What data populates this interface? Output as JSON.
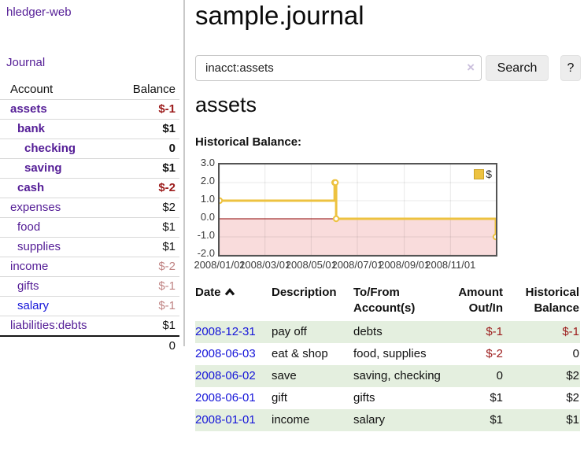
{
  "app_title": "hledger-web",
  "colors": {
    "link_purple": "#541d96",
    "link_blue": "#1616d9",
    "negative_red": "#9c1b1b",
    "negative_faded_red": "#c08484",
    "row_stripe_green": "#e4efdf",
    "chart_line_yellow": "#edc240",
    "chart_negative_region_pink": "#f9dcdc",
    "chart_zero_line": "#8b0000"
  },
  "sidebar": {
    "journal_link": "Journal",
    "account_header": "Account",
    "balance_header": "Balance",
    "accounts": [
      {
        "name": "assets",
        "balance": "$-1",
        "indent": 0,
        "bold": true,
        "balance_style": "negative",
        "link_style": "purple"
      },
      {
        "name": "bank",
        "balance": "$1",
        "indent": 1,
        "bold": true,
        "balance_style": "normal",
        "link_style": "purple"
      },
      {
        "name": "checking",
        "balance": "0",
        "indent": 2,
        "bold": true,
        "balance_style": "normal",
        "link_style": "purple"
      },
      {
        "name": "saving",
        "balance": "$1",
        "indent": 2,
        "bold": true,
        "balance_style": "normal",
        "link_style": "purple"
      },
      {
        "name": "cash",
        "balance": "$-2",
        "indent": 1,
        "bold": true,
        "balance_style": "negative",
        "link_style": "purple"
      },
      {
        "name": "expenses",
        "balance": "$2",
        "indent": 0,
        "bold": false,
        "balance_style": "normal",
        "link_style": "purple"
      },
      {
        "name": "food",
        "balance": "$1",
        "indent": 1,
        "bold": false,
        "balance_style": "normal",
        "link_style": "purple"
      },
      {
        "name": "supplies",
        "balance": "$1",
        "indent": 1,
        "bold": false,
        "balance_style": "normal",
        "link_style": "purple"
      },
      {
        "name": "income",
        "balance": "$-2",
        "indent": 0,
        "bold": false,
        "balance_style": "negative-faded",
        "link_style": "purple"
      },
      {
        "name": "gifts",
        "balance": "$-1",
        "indent": 1,
        "bold": false,
        "balance_style": "negative-faded",
        "link_style": "purple"
      },
      {
        "name": "salary",
        "balance": "$-1",
        "indent": 1,
        "bold": false,
        "balance_style": "negative-faded",
        "link_style": "blue"
      },
      {
        "name": "liabilities:debts",
        "balance": "$1",
        "indent": 0,
        "bold": false,
        "balance_style": "normal",
        "link_style": "purple"
      }
    ],
    "total": "0"
  },
  "main": {
    "title": "sample.journal",
    "search": {
      "value": "inacct:assets",
      "clear_icon": "×",
      "search_button": "Search",
      "help_button": "?"
    },
    "account_heading": "assets",
    "chart_title": "Historical Balance:"
  },
  "chart_data": {
    "type": "line",
    "steps": true,
    "title": "Historical Balance:",
    "series": [
      {
        "name": "$",
        "color": "#edc240",
        "points": [
          [
            "2008-01-01",
            1
          ],
          [
            "2008-06-01",
            2
          ],
          [
            "2008-06-02",
            2
          ],
          [
            "2008-06-03",
            0
          ],
          [
            "2008-12-31",
            -1
          ]
        ]
      }
    ],
    "x_range": [
      "2008-01-01",
      "2008-12-31"
    ],
    "ylim": [
      -2,
      3
    ],
    "yticks": [
      "3.0",
      "2.0",
      "1.0",
      "0.0",
      "-1.0",
      "-2.0"
    ],
    "xticks": [
      {
        "date": "2008-01-01",
        "label": "2008/01/01"
      },
      {
        "date": "2008-03-01",
        "label": "2008/03/01"
      },
      {
        "date": "2008-05-01",
        "label": "2008/05/01"
      },
      {
        "date": "2008-07-01",
        "label": "2008/07/01"
      },
      {
        "date": "2008-09-01",
        "label": "2008/09/01"
      },
      {
        "date": "2008-11-01",
        "label": "2008/11/01"
      }
    ],
    "legend": {
      "label": "$",
      "position": "top-right"
    },
    "grid": true,
    "negative_region": true
  },
  "register": {
    "columns": [
      "Date",
      "Description",
      "To/From Account(s)",
      "Amount Out/In",
      "Historical Balance"
    ],
    "sort_column": "Date",
    "sort_direction": "ascending",
    "rows": [
      {
        "date": "2008-12-31",
        "description": "pay off",
        "accounts": "debts",
        "amount": "$-1",
        "balance": "$-1",
        "amount_negative": true,
        "balance_negative": true
      },
      {
        "date": "2008-06-03",
        "description": "eat & shop",
        "accounts": "food, supplies",
        "amount": "$-2",
        "balance": "0",
        "amount_negative": true,
        "balance_negative": false
      },
      {
        "date": "2008-06-02",
        "description": "save",
        "accounts": "saving, checking",
        "amount": "0",
        "balance": "$2",
        "amount_negative": false,
        "balance_negative": false
      },
      {
        "date": "2008-06-01",
        "description": "gift",
        "accounts": "gifts",
        "amount": "$1",
        "balance": "$2",
        "amount_negative": false,
        "balance_negative": false
      },
      {
        "date": "2008-01-01",
        "description": "income",
        "accounts": "salary",
        "amount": "$1",
        "balance": "$1",
        "amount_negative": false,
        "balance_negative": false
      }
    ]
  }
}
